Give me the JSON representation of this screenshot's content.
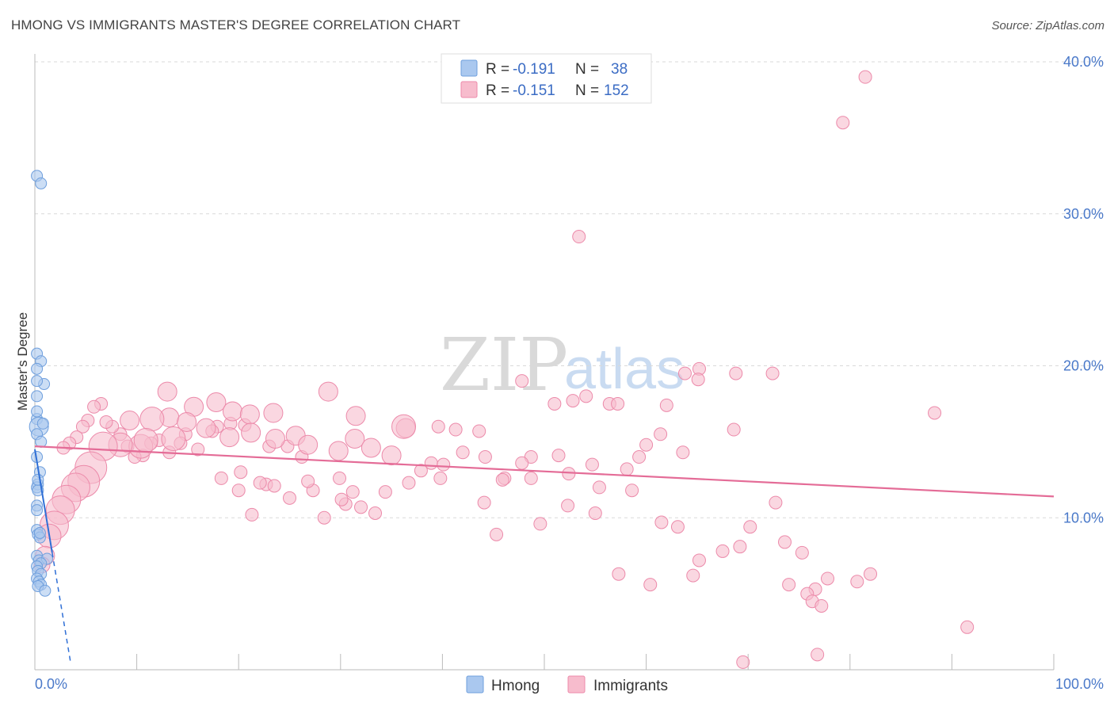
{
  "title": "HMONG VS IMMIGRANTS MASTER'S DEGREE CORRELATION CHART",
  "source": "Source: ZipAtlas.com",
  "watermark": {
    "zip": "ZIP",
    "atlas": "atlas"
  },
  "legend": {
    "rows": [
      {
        "r_label": "R = ",
        "r_value": "-0.191",
        "n_label": "N = ",
        "n_value": "38"
      },
      {
        "r_label": "R = ",
        "r_value": "-0.151",
        "n_label": "N = ",
        "n_value": "152"
      }
    ]
  },
  "bottom_legend": [
    "Hmong",
    "Immigrants"
  ],
  "chart_data": {
    "type": "scatter",
    "title": "HMONG VS IMMIGRANTS MASTER'S DEGREE CORRELATION CHART",
    "xlabel": "",
    "ylabel": "Master's Degree",
    "xlim": [
      0,
      100
    ],
    "ylim": [
      0,
      40
    ],
    "y_tick_values": [
      10,
      20,
      30,
      40
    ],
    "y_tick_labels": [
      "10.0%",
      "20.0%",
      "30.0%",
      "40.0%"
    ],
    "x_tick_labels": [
      "0.0%",
      "100.0%"
    ],
    "grid": true,
    "colors": {
      "hmong_fill": "#aac8ef",
      "hmong_stroke": "#6f9fdd",
      "hmong_line": "#2f6fd6",
      "imm_fill": "#f7bccd",
      "imm_stroke": "#ec8aaa",
      "imm_line": "#e46c97"
    },
    "series": [
      {
        "name": "Hmong",
        "trend": {
          "x0": 0,
          "y0": 14.5,
          "x1": 3.5,
          "y1": 0.5,
          "solid_until": 1.7
        },
        "points": [
          [
            0.2,
            32.5,
            7
          ],
          [
            0.6,
            32.0,
            7
          ],
          [
            0.2,
            20.8,
            7
          ],
          [
            0.6,
            20.3,
            7
          ],
          [
            0.2,
            19.8,
            7
          ],
          [
            0.9,
            18.8,
            7
          ],
          [
            0.2,
            19.0,
            7
          ],
          [
            0.2,
            18.0,
            7
          ],
          [
            0.2,
            16.5,
            7
          ],
          [
            0.4,
            16.0,
            12
          ],
          [
            0.8,
            16.2,
            7
          ],
          [
            0.2,
            15.5,
            7
          ],
          [
            0.5,
            13.0,
            7
          ],
          [
            0.3,
            12.2,
            7
          ],
          [
            0.2,
            12.0,
            7
          ],
          [
            0.3,
            11.8,
            7
          ],
          [
            0.2,
            10.8,
            7
          ],
          [
            0.2,
            9.2,
            7
          ],
          [
            0.3,
            8.9,
            7
          ],
          [
            0.5,
            8.7,
            7
          ],
          [
            0.2,
            7.5,
            7
          ],
          [
            0.4,
            7.2,
            7
          ],
          [
            1.2,
            7.3,
            7
          ],
          [
            0.6,
            7.0,
            7
          ],
          [
            0.2,
            6.8,
            7
          ],
          [
            0.3,
            6.5,
            7
          ],
          [
            0.6,
            6.3,
            7
          ],
          [
            0.2,
            6.0,
            7
          ],
          [
            0.4,
            5.8,
            7
          ],
          [
            0.6,
            5.6,
            7
          ],
          [
            0.3,
            5.5,
            7
          ],
          [
            1.0,
            5.2,
            7
          ],
          [
            0.5,
            9.0,
            7
          ],
          [
            0.2,
            10.5,
            7
          ],
          [
            0.3,
            12.5,
            7
          ],
          [
            0.2,
            14.0,
            7
          ],
          [
            0.6,
            15.0,
            7
          ],
          [
            0.2,
            17.0,
            7
          ]
        ]
      },
      {
        "name": "Immigrants",
        "trend": {
          "x0": 0,
          "y0": 14.7,
          "x1": 100,
          "y1": 11.4
        },
        "points": [
          [
            81.5,
            39.0,
            8
          ],
          [
            79.3,
            36.0,
            8
          ],
          [
            53.4,
            28.5,
            8
          ],
          [
            65.2,
            19.8,
            8
          ],
          [
            63.8,
            19.5,
            8
          ],
          [
            68.8,
            19.5,
            8
          ],
          [
            72.4,
            19.5,
            8
          ],
          [
            65.1,
            19.1,
            8
          ],
          [
            54.1,
            18.0,
            8
          ],
          [
            47.8,
            19.0,
            8
          ],
          [
            56.4,
            17.5,
            8
          ],
          [
            88.3,
            16.9,
            8
          ],
          [
            62.0,
            17.4,
            8
          ],
          [
            51.0,
            17.5,
            8
          ],
          [
            57.2,
            17.5,
            8
          ],
          [
            68.6,
            15.8,
            8
          ],
          [
            61.4,
            15.5,
            8
          ],
          [
            60.0,
            14.8,
            8
          ],
          [
            63.6,
            14.3,
            8
          ],
          [
            51.4,
            14.1,
            8
          ],
          [
            48.7,
            14.0,
            8
          ],
          [
            47.8,
            13.6,
            8
          ],
          [
            52.4,
            12.9,
            8
          ],
          [
            54.7,
            13.5,
            8
          ],
          [
            46.1,
            12.6,
            8
          ],
          [
            48.7,
            12.6,
            8
          ],
          [
            55.4,
            12.0,
            8
          ],
          [
            58.6,
            11.8,
            8
          ],
          [
            72.7,
            11.0,
            8
          ],
          [
            58.1,
            13.2,
            8
          ],
          [
            41.3,
            15.8,
            8
          ],
          [
            39.6,
            16.0,
            8
          ],
          [
            36.7,
            12.3,
            8
          ],
          [
            42.0,
            14.3,
            8
          ],
          [
            43.6,
            15.7,
            8
          ],
          [
            44.2,
            14.0,
            8
          ],
          [
            45.9,
            12.5,
            8
          ],
          [
            44.1,
            11.0,
            8
          ],
          [
            39.8,
            12.6,
            8
          ],
          [
            38.9,
            13.6,
            8
          ],
          [
            37.9,
            13.1,
            8
          ],
          [
            34.4,
            11.7,
            8
          ],
          [
            30.5,
            10.9,
            8
          ],
          [
            31.2,
            11.7,
            8
          ],
          [
            33.4,
            10.3,
            8
          ],
          [
            32.0,
            10.7,
            8
          ],
          [
            30.1,
            11.2,
            8
          ],
          [
            29.9,
            12.6,
            8
          ],
          [
            28.4,
            10.0,
            8
          ],
          [
            27.3,
            11.8,
            8
          ],
          [
            26.8,
            12.4,
            8
          ],
          [
            22.7,
            12.2,
            8
          ],
          [
            22.1,
            12.3,
            8
          ],
          [
            20.2,
            13.0,
            8
          ],
          [
            18.3,
            12.6,
            8
          ],
          [
            20.0,
            11.8,
            8
          ],
          [
            21.3,
            10.2,
            8
          ],
          [
            23.5,
            12.1,
            8
          ],
          [
            25.0,
            11.3,
            8
          ],
          [
            26.2,
            14.0,
            8
          ],
          [
            24.8,
            14.7,
            8
          ],
          [
            23.0,
            14.7,
            8
          ],
          [
            20.6,
            16.1,
            8
          ],
          [
            19.2,
            16.2,
            8
          ],
          [
            17.9,
            16.0,
            8
          ],
          [
            17.4,
            15.7,
            8
          ],
          [
            16.0,
            14.5,
            8
          ],
          [
            14.8,
            15.5,
            8
          ],
          [
            14.3,
            14.9,
            8
          ],
          [
            13.2,
            14.3,
            8
          ],
          [
            12.2,
            15.1,
            8
          ],
          [
            11.4,
            14.9,
            8
          ],
          [
            10.6,
            14.1,
            8
          ],
          [
            9.8,
            14.0,
            8
          ],
          [
            9.1,
            14.7,
            8
          ],
          [
            8.4,
            15.5,
            8
          ],
          [
            7.6,
            16.0,
            8
          ],
          [
            7.0,
            16.3,
            8
          ],
          [
            6.5,
            17.5,
            8
          ],
          [
            5.8,
            17.3,
            8
          ],
          [
            5.2,
            16.4,
            8
          ],
          [
            4.7,
            16.0,
            8
          ],
          [
            4.1,
            15.3,
            8
          ],
          [
            3.4,
            14.9,
            8
          ],
          [
            2.8,
            14.6,
            8
          ],
          [
            13.0,
            18.3,
            12
          ],
          [
            15.6,
            17.3,
            12
          ],
          [
            17.8,
            17.6,
            12
          ],
          [
            19.4,
            17.0,
            12
          ],
          [
            21.1,
            16.8,
            12
          ],
          [
            23.4,
            16.9,
            12
          ],
          [
            28.8,
            18.3,
            12
          ],
          [
            13.2,
            16.6,
            12
          ],
          [
            14.9,
            16.3,
            12
          ],
          [
            16.8,
            15.9,
            12
          ],
          [
            19.1,
            15.3,
            12
          ],
          [
            21.2,
            15.6,
            12
          ],
          [
            23.6,
            15.2,
            12
          ],
          [
            25.6,
            15.4,
            12
          ],
          [
            26.8,
            14.8,
            12
          ],
          [
            29.8,
            14.4,
            12
          ],
          [
            31.4,
            15.2,
            12
          ],
          [
            33.0,
            14.6,
            12
          ],
          [
            35.0,
            14.1,
            12
          ],
          [
            36.4,
            15.9,
            12
          ],
          [
            11.5,
            16.5,
            15
          ],
          [
            13.6,
            15.2,
            15
          ],
          [
            10.4,
            14.7,
            15
          ],
          [
            10.9,
            15.1,
            15
          ],
          [
            8.4,
            14.8,
            15
          ],
          [
            6.7,
            14.7,
            18
          ],
          [
            5.5,
            13.3,
            20
          ],
          [
            4.8,
            12.4,
            20
          ],
          [
            4.0,
            12.0,
            18
          ],
          [
            3.1,
            11.2,
            18
          ],
          [
            2.5,
            10.5,
            18
          ],
          [
            1.9,
            9.5,
            18
          ],
          [
            1.4,
            8.8,
            15
          ],
          [
            1.0,
            7.5,
            12
          ],
          [
            0.7,
            6.9,
            10
          ],
          [
            36.2,
            16.0,
            15
          ],
          [
            31.5,
            16.7,
            12
          ],
          [
            9.3,
            16.4,
            12
          ],
          [
            45.3,
            8.9,
            8
          ],
          [
            49.6,
            9.6,
            8
          ],
          [
            52.3,
            10.8,
            8
          ],
          [
            55.0,
            10.3,
            8
          ],
          [
            61.5,
            9.7,
            8
          ],
          [
            63.1,
            9.4,
            8
          ],
          [
            67.5,
            7.8,
            8
          ],
          [
            69.2,
            8.1,
            8
          ],
          [
            73.6,
            8.4,
            8
          ],
          [
            75.3,
            7.7,
            8
          ],
          [
            74.0,
            5.6,
            8
          ],
          [
            76.6,
            5.3,
            8
          ],
          [
            77.8,
            6.0,
            8
          ],
          [
            75.8,
            5.0,
            8
          ],
          [
            76.3,
            4.5,
            8
          ],
          [
            82.0,
            6.3,
            8
          ],
          [
            80.7,
            5.8,
            8
          ],
          [
            57.3,
            6.3,
            8
          ],
          [
            60.4,
            5.6,
            8
          ],
          [
            64.6,
            6.2,
            8
          ],
          [
            65.2,
            7.2,
            8
          ],
          [
            70.2,
            9.4,
            8
          ],
          [
            77.2,
            4.2,
            8
          ],
          [
            91.5,
            2.8,
            8
          ],
          [
            76.8,
            1.0,
            8
          ],
          [
            69.5,
            0.5,
            8
          ],
          [
            52.8,
            17.7,
            8
          ],
          [
            40.1,
            13.5,
            8
          ],
          [
            59.3,
            14.0,
            8
          ]
        ]
      }
    ]
  }
}
